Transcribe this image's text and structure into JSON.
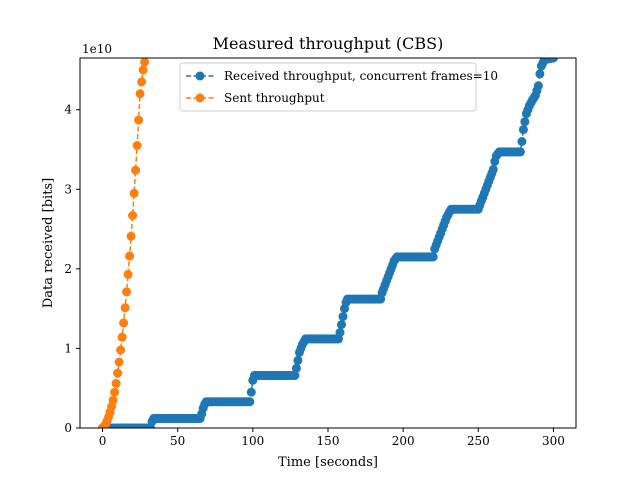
{
  "chart_data": {
    "type": "line",
    "title": "Measured throughput (CBS)",
    "xlabel": "Time [seconds]",
    "ylabel": "Data received [bits]",
    "y_offset_label": "1e10",
    "xlim": [
      -15,
      315
    ],
    "ylim": [
      0,
      4.65
    ],
    "x_ticks": [
      0,
      50,
      100,
      150,
      200,
      250,
      300
    ],
    "x_tick_labels": [
      "0",
      "50",
      "100",
      "150",
      "200",
      "250",
      "300"
    ],
    "y_ticks": [
      0,
      1,
      2,
      3,
      4
    ],
    "y_tick_labels": [
      "0",
      "1",
      "2",
      "3",
      "4"
    ],
    "grid": false,
    "legend_position": "top-center",
    "series": [
      {
        "name": "Received throughput, concurrent frames=10",
        "color": "#1f77b4",
        "linestyle": "dashed",
        "marker": "circle",
        "segments": [
          [
            0,
            0.0
          ],
          [
            32,
            0.0
          ],
          [
            33,
            0.08
          ],
          [
            34,
            0.12
          ],
          [
            65,
            0.12
          ],
          [
            66,
            0.18
          ],
          [
            67,
            0.25
          ],
          [
            68,
            0.3
          ],
          [
            69,
            0.33
          ],
          [
            98,
            0.33
          ],
          [
            99,
            0.45
          ],
          [
            100,
            0.6
          ],
          [
            101,
            0.66
          ],
          [
            128,
            0.66
          ],
          [
            129,
            0.75
          ],
          [
            130,
            0.85
          ],
          [
            131,
            0.95
          ],
          [
            133,
            1.05
          ],
          [
            135,
            1.12
          ],
          [
            157,
            1.12
          ],
          [
            158,
            1.2
          ],
          [
            159,
            1.3
          ],
          [
            160,
            1.4
          ],
          [
            161,
            1.5
          ],
          [
            162,
            1.58
          ],
          [
            163,
            1.62
          ],
          [
            185,
            1.62
          ],
          [
            186,
            1.7
          ],
          [
            188,
            1.8
          ],
          [
            190,
            1.9
          ],
          [
            192,
            2.0
          ],
          [
            194,
            2.1
          ],
          [
            196,
            2.15
          ],
          [
            220,
            2.15
          ],
          [
            221,
            2.25
          ],
          [
            223,
            2.35
          ],
          [
            225,
            2.45
          ],
          [
            227,
            2.55
          ],
          [
            229,
            2.65
          ],
          [
            231,
            2.72
          ],
          [
            232,
            2.75
          ],
          [
            250,
            2.75
          ],
          [
            252,
            2.85
          ],
          [
            254,
            2.95
          ],
          [
            256,
            3.05
          ],
          [
            258,
            3.15
          ],
          [
            260,
            3.25
          ],
          [
            261,
            3.35
          ],
          [
            262,
            3.42
          ],
          [
            264,
            3.47
          ],
          [
            278,
            3.47
          ],
          [
            279,
            3.6
          ],
          [
            280,
            3.75
          ],
          [
            281,
            3.85
          ],
          [
            282,
            3.95
          ],
          [
            284,
            4.05
          ],
          [
            286,
            4.12
          ],
          [
            288,
            4.18
          ],
          [
            290,
            4.3
          ],
          [
            291,
            4.45
          ],
          [
            292,
            4.55
          ],
          [
            294,
            4.63
          ],
          [
            300,
            4.65
          ]
        ]
      },
      {
        "name": "Sent throughput",
        "color": "#ff7f0e",
        "linestyle": "dashed",
        "marker": "circle",
        "x": [
          0,
          1,
          2,
          3,
          4,
          5,
          6,
          7,
          8,
          9,
          10,
          11,
          12,
          13,
          14,
          15,
          16,
          17,
          18,
          19,
          20,
          21,
          22,
          23,
          24,
          25,
          26,
          27,
          28
        ],
        "y": [
          0.0,
          0.02,
          0.05,
          0.09,
          0.14,
          0.2,
          0.27,
          0.35,
          0.45,
          0.56,
          0.69,
          0.83,
          0.98,
          1.14,
          1.32,
          1.51,
          1.71,
          1.93,
          2.16,
          2.41,
          2.67,
          2.95,
          3.24,
          3.55,
          3.87,
          4.2,
          4.35,
          4.5,
          4.6
        ]
      }
    ]
  }
}
